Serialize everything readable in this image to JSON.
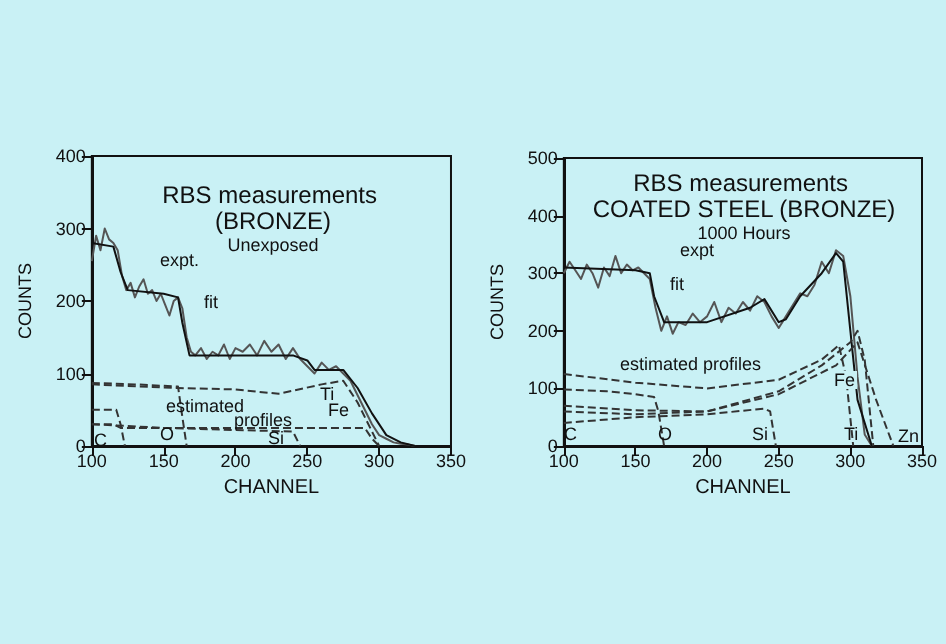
{
  "chart_data": [
    {
      "type": "line",
      "title": "RBS measurements (BRONZE)",
      "subtitle": "Unexposed",
      "xlabel": "CHANNEL",
      "ylabel": "COUNTS",
      "xlim": [
        100,
        350
      ],
      "xticks": [
        100,
        150,
        200,
        250,
        300,
        350
      ],
      "ylim": [
        0,
        400
      ],
      "yticks": [
        0,
        100,
        200,
        300,
        400
      ],
      "grid": false,
      "series": [
        {
          "color": "#555555",
          "line_style": "solid",
          "x": [
            100,
            103,
            106,
            109,
            112,
            115,
            118,
            121,
            124,
            127,
            130,
            133,
            136,
            139,
            142,
            145,
            148,
            151,
            154,
            157,
            160,
            163,
            166,
            169,
            172,
            176,
            180,
            184,
            188,
            192,
            196,
            200,
            205,
            210,
            215,
            220,
            225,
            230,
            235,
            240,
            245,
            250,
            255,
            260,
            265,
            270,
            275,
            280,
            285,
            290,
            295,
            300,
            305,
            310,
            315,
            320,
            325
          ],
          "values": [
            255,
            290,
            270,
            300,
            285,
            280,
            270,
            235,
            215,
            225,
            205,
            220,
            230,
            210,
            215,
            200,
            210,
            195,
            180,
            200,
            205,
            190,
            150,
            130,
            125,
            135,
            120,
            130,
            125,
            140,
            120,
            135,
            130,
            140,
            125,
            145,
            130,
            140,
            120,
            135,
            120,
            110,
            100,
            115,
            105,
            110,
            100,
            90,
            70,
            50,
            30,
            15,
            10,
            5,
            3,
            2,
            0
          ]
        },
        {
          "color": "#111111",
          "line_style": "solid",
          "x": [
            100,
            115,
            120,
            125,
            150,
            160,
            163,
            168,
            240,
            250,
            255,
            275,
            285,
            295,
            305,
            315,
            325
          ],
          "values": [
            280,
            275,
            240,
            215,
            210,
            205,
            170,
            125,
            125,
            118,
            105,
            105,
            80,
            45,
            15,
            5,
            0
          ]
        },
        {
          "color": "#333333",
          "line_style": "dashed",
          "x": [
            100,
            117,
            120,
            123
          ],
          "values": [
            50,
            50,
            30,
            0
          ]
        },
        {
          "color": "#333333",
          "line_style": "dashed",
          "x": [
            100,
            130,
            160,
            163,
            166
          ],
          "values": [
            87,
            85,
            82,
            40,
            0
          ]
        },
        {
          "color": "#333333",
          "line_style": "dashed",
          "x": [
            100,
            160,
            200,
            230,
            260,
            275,
            285,
            300
          ],
          "values": [
            85,
            80,
            78,
            72,
            85,
            90,
            60,
            0
          ]
        },
        {
          "color": "#333333",
          "line_style": "dashed",
          "x": [
            100,
            150,
            200,
            240,
            245
          ],
          "values": [
            30,
            25,
            22,
            20,
            0
          ]
        },
        {
          "color": "#333333",
          "line_style": "dashed",
          "x": [
            100,
            115,
            120,
            200,
            290,
            295,
            300
          ],
          "values": [
            30,
            30,
            25,
            25,
            25,
            10,
            0
          ]
        }
      ],
      "annotations": [
        "expt.",
        "fit",
        "estimated",
        "profiles",
        "Ti",
        "Fe",
        "C",
        "O",
        "Si"
      ]
    },
    {
      "type": "line",
      "title": "RBS measurements COATED STEEL (BRONZE)",
      "subtitle": "1000 Hours",
      "xlabel": "CHANNEL",
      "ylabel": "COUNTS",
      "xlim": [
        100,
        350
      ],
      "xticks": [
        100,
        150,
        200,
        250,
        300,
        350
      ],
      "ylim": [
        0,
        500
      ],
      "yticks": [
        0,
        100,
        200,
        300,
        400,
        500
      ],
      "grid": false,
      "series": [
        {
          "color": "#555555",
          "line_style": "solid",
          "x": [
            100,
            104,
            108,
            112,
            116,
            120,
            124,
            128,
            132,
            136,
            140,
            144,
            148,
            152,
            156,
            160,
            164,
            168,
            172,
            176,
            180,
            185,
            190,
            195,
            200,
            205,
            210,
            215,
            220,
            225,
            230,
            235,
            240,
            245,
            250,
            255,
            260,
            265,
            270,
            275,
            280,
            285,
            290,
            295,
            300,
            305,
            310,
            315
          ],
          "values": [
            300,
            320,
            305,
            290,
            315,
            300,
            275,
            310,
            295,
            330,
            300,
            315,
            305,
            310,
            300,
            290,
            240,
            200,
            225,
            195,
            215,
            210,
            230,
            215,
            225,
            250,
            215,
            240,
            230,
            250,
            235,
            260,
            250,
            225,
            205,
            225,
            245,
            265,
            260,
            280,
            320,
            300,
            340,
            330,
            260,
            120,
            20,
            0
          ]
        },
        {
          "color": "#111111",
          "line_style": "solid",
          "x": [
            100,
            150,
            160,
            163,
            170,
            200,
            230,
            240,
            250,
            255,
            265,
            280,
            290,
            295,
            300,
            305,
            315
          ],
          "values": [
            310,
            305,
            300,
            260,
            215,
            215,
            240,
            255,
            215,
            220,
            260,
            300,
            335,
            320,
            200,
            80,
            0
          ]
        },
        {
          "color": "#333333",
          "line_style": "dashed",
          "x": [
            100,
            150,
            200,
            240,
            244,
            248
          ],
          "values": [
            40,
            50,
            55,
            65,
            60,
            0
          ]
        },
        {
          "color": "#333333",
          "line_style": "dashed",
          "x": [
            100,
            130,
            150,
            163,
            166,
            170
          ],
          "values": [
            98,
            95,
            90,
            85,
            60,
            0
          ]
        },
        {
          "color": "#333333",
          "line_style": "dashed",
          "x": [
            100,
            150,
            200,
            250,
            280,
            292,
            297,
            302
          ],
          "values": [
            125,
            110,
            100,
            115,
            150,
            175,
            120,
            0
          ]
        },
        {
          "color": "#333333",
          "line_style": "dashed",
          "x": [
            100,
            150,
            200,
            250,
            280,
            300,
            305,
            310,
            316
          ],
          "values": [
            70,
            62,
            60,
            95,
            140,
            180,
            200,
            150,
            0
          ]
        },
        {
          "color": "#333333",
          "line_style": "dashed",
          "x": [
            100,
            150,
            200,
            250,
            290,
            305,
            318,
            330
          ],
          "values": [
            60,
            55,
            60,
            90,
            140,
            180,
            80,
            0
          ]
        }
      ],
      "annotations": [
        "expt",
        "fit",
        "estimated profiles",
        "Fe",
        "C",
        "O",
        "Si",
        "Ti",
        "Zn"
      ]
    }
  ]
}
